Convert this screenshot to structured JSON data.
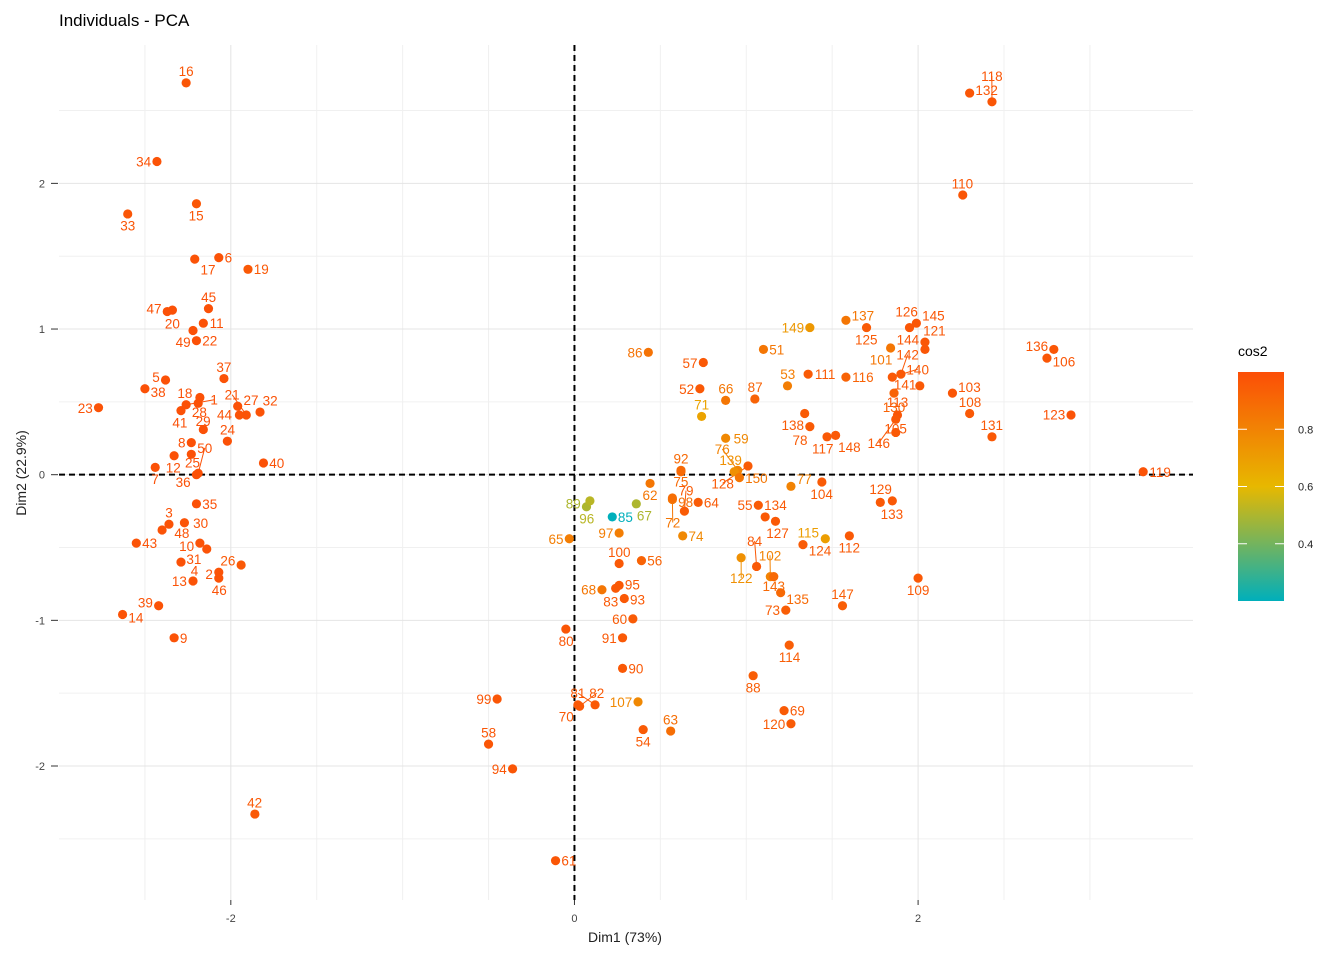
{
  "chart_data": {
    "type": "scatter",
    "title": "Individuals - PCA",
    "xlabel": "Dim1 (73%)",
    "ylabel": "Dim2 (22.9%)",
    "xlim": [
      -3.0,
      3.6
    ],
    "ylim": [
      -2.92,
      2.95
    ],
    "x_ticks": [
      -2,
      0,
      2
    ],
    "y_ticks": [
      -2,
      -1,
      0,
      1,
      2
    ],
    "x_tick_labels": [
      "-2",
      "0",
      "2"
    ],
    "y_tick_labels": [
      "-2",
      "-1",
      "0",
      "1",
      "2"
    ],
    "grid": true,
    "reference_lines": "dashed at x=0 and y=0",
    "color_variable": "cos2",
    "legend": {
      "title": "cos2",
      "position": "right",
      "ticks": [
        0.4,
        0.6,
        0.8
      ],
      "tick_labels": [
        "0.4",
        "0.6",
        "0.8"
      ],
      "range": [
        0.2,
        1.0
      ],
      "colors": [
        "#00AFBB",
        "#E7B800",
        "#FC4E07"
      ]
    },
    "points": [
      {
        "label": "1",
        "x": -2.26,
        "y": 0.48,
        "cos2": 0.99
      },
      {
        "label": "2",
        "x": -2.07,
        "y": -0.67,
        "cos2": 0.98
      },
      {
        "label": "3",
        "x": -2.36,
        "y": -0.34,
        "cos2": 0.98
      },
      {
        "label": "4",
        "x": -2.29,
        "y": -0.6,
        "cos2": 0.99
      },
      {
        "label": "5",
        "x": -2.38,
        "y": 0.65,
        "cos2": 0.99
      },
      {
        "label": "6",
        "x": -2.07,
        "y": 1.49,
        "cos2": 0.98
      },
      {
        "label": "7",
        "x": -2.44,
        "y": 0.05,
        "cos2": 0.99
      },
      {
        "label": "8",
        "x": -2.23,
        "y": 0.22,
        "cos2": 0.99
      },
      {
        "label": "9",
        "x": -2.33,
        "y": -1.12,
        "cos2": 0.98
      },
      {
        "label": "10",
        "x": -2.18,
        "y": -0.47,
        "cos2": 0.98
      },
      {
        "label": "11",
        "x": -2.16,
        "y": 1.04,
        "cos2": 0.99
      },
      {
        "label": "12",
        "x": -2.33,
        "y": 0.13,
        "cos2": 0.99
      },
      {
        "label": "13",
        "x": -2.22,
        "y": -0.73,
        "cos2": 0.98
      },
      {
        "label": "14",
        "x": -2.63,
        "y": -0.96,
        "cos2": 0.98
      },
      {
        "label": "15",
        "x": -2.2,
        "y": 1.86,
        "cos2": 0.97
      },
      {
        "label": "16",
        "x": -2.26,
        "y": 2.69,
        "cos2": 0.97
      },
      {
        "label": "17",
        "x": -2.21,
        "y": 1.48,
        "cos2": 0.98
      },
      {
        "label": "18",
        "x": -2.19,
        "y": 0.49,
        "cos2": 0.99
      },
      {
        "label": "19",
        "x": -1.9,
        "y": 1.41,
        "cos2": 0.96
      },
      {
        "label": "20",
        "x": -2.34,
        "y": 1.13,
        "cos2": 0.99
      },
      {
        "label": "21",
        "x": -1.91,
        "y": 0.41,
        "cos2": 0.98
      },
      {
        "label": "22",
        "x": -2.2,
        "y": 0.92,
        "cos2": 0.99
      },
      {
        "label": "23",
        "x": -2.77,
        "y": 0.46,
        "cos2": 0.98
      },
      {
        "label": "24",
        "x": -2.02,
        "y": 0.23,
        "cos2": 0.99
      },
      {
        "label": "25",
        "x": -2.23,
        "y": 0.14,
        "cos2": 0.99
      },
      {
        "label": "26",
        "x": -1.94,
        "y": -0.62,
        "cos2": 0.96
      },
      {
        "label": "27",
        "x": -1.96,
        "y": 0.47,
        "cos2": 0.99
      },
      {
        "label": "28",
        "x": -2.18,
        "y": 0.53,
        "cos2": 0.99
      },
      {
        "label": "29",
        "x": -2.16,
        "y": 0.31,
        "cos2": 0.99
      },
      {
        "label": "30",
        "x": -2.27,
        "y": -0.33,
        "cos2": 0.98
      },
      {
        "label": "31",
        "x": -2.14,
        "y": -0.51,
        "cos2": 0.98
      },
      {
        "label": "32",
        "x": -1.83,
        "y": 0.43,
        "cos2": 0.98
      },
      {
        "label": "33",
        "x": -2.6,
        "y": 1.79,
        "cos2": 0.97
      },
      {
        "label": "34",
        "x": -2.43,
        "y": 2.15,
        "cos2": 0.98
      },
      {
        "label": "35",
        "x": -2.2,
        "y": -0.2,
        "cos2": 0.99
      },
      {
        "label": "36",
        "x": -2.2,
        "y": 0.0,
        "cos2": 0.99
      },
      {
        "label": "37",
        "x": -2.04,
        "y": 0.66,
        "cos2": 0.98
      },
      {
        "label": "38",
        "x": -2.5,
        "y": 0.59,
        "cos2": 0.99
      },
      {
        "label": "39",
        "x": -2.42,
        "y": -0.9,
        "cos2": 0.98
      },
      {
        "label": "40",
        "x": -1.81,
        "y": 0.08,
        "cos2": 0.99
      },
      {
        "label": "41",
        "x": -2.29,
        "y": 0.44,
        "cos2": 0.99
      },
      {
        "label": "42",
        "x": -1.86,
        "y": -2.33,
        "cos2": 0.96
      },
      {
        "label": "43",
        "x": -2.55,
        "y": -0.47,
        "cos2": 0.98
      },
      {
        "label": "44",
        "x": -1.95,
        "y": 0.41,
        "cos2": 0.98
      },
      {
        "label": "45",
        "x": -2.13,
        "y": 1.14,
        "cos2": 0.99
      },
      {
        "label": "46",
        "x": -2.07,
        "y": -0.71,
        "cos2": 0.98
      },
      {
        "label": "47",
        "x": -2.37,
        "y": 1.12,
        "cos2": 0.99
      },
      {
        "label": "48",
        "x": -2.4,
        "y": -0.38,
        "cos2": 0.98
      },
      {
        "label": "49",
        "x": -2.22,
        "y": 0.99,
        "cos2": 0.99
      },
      {
        "label": "50",
        "x": -2.19,
        "y": 0.01,
        "cos2": 0.99
      },
      {
        "label": "51",
        "x": 1.1,
        "y": 0.86,
        "cos2": 0.85
      },
      {
        "label": "52",
        "x": 0.73,
        "y": 0.59,
        "cos2": 0.96
      },
      {
        "label": "53",
        "x": 1.24,
        "y": 0.61,
        "cos2": 0.82
      },
      {
        "label": "54",
        "x": 0.4,
        "y": -1.75,
        "cos2": 0.95
      },
      {
        "label": "55",
        "x": 1.07,
        "y": -0.21,
        "cos2": 0.95
      },
      {
        "label": "56",
        "x": 0.39,
        "y": -0.59,
        "cos2": 0.92
      },
      {
        "label": "57",
        "x": 0.75,
        "y": 0.77,
        "cos2": 0.96
      },
      {
        "label": "58",
        "x": -0.5,
        "y": -1.85,
        "cos2": 0.97
      },
      {
        "label": "59",
        "x": 0.88,
        "y": 0.25,
        "cos2": 0.78
      },
      {
        "label": "60",
        "x": 0.34,
        "y": -0.99,
        "cos2": 0.95
      },
      {
        "label": "61",
        "x": -0.11,
        "y": -2.65,
        "cos2": 0.97
      },
      {
        "label": "62",
        "x": 0.44,
        "y": -0.06,
        "cos2": 0.85
      },
      {
        "label": "63",
        "x": 0.56,
        "y": -1.76,
        "cos2": 0.88
      },
      {
        "label": "64",
        "x": 0.72,
        "y": -0.19,
        "cos2": 0.95
      },
      {
        "label": "65",
        "x": -0.03,
        "y": -0.44,
        "cos2": 0.82
      },
      {
        "label": "66",
        "x": 0.88,
        "y": 0.51,
        "cos2": 0.85
      },
      {
        "label": "67",
        "x": 0.36,
        "y": -0.2,
        "cos2": 0.5
      },
      {
        "label": "68",
        "x": 0.16,
        "y": -0.79,
        "cos2": 0.85
      },
      {
        "label": "69",
        "x": 1.22,
        "y": -1.62,
        "cos2": 0.95
      },
      {
        "label": "70",
        "x": 0.02,
        "y": -1.58,
        "cos2": 0.96
      },
      {
        "label": "71",
        "x": 0.74,
        "y": 0.4,
        "cos2": 0.68
      },
      {
        "label": "72",
        "x": 0.57,
        "y": -0.17,
        "cos2": 0.85
      },
      {
        "label": "73",
        "x": 1.23,
        "y": -0.93,
        "cos2": 0.94
      },
      {
        "label": "74",
        "x": 0.63,
        "y": -0.42,
        "cos2": 0.78
      },
      {
        "label": "75",
        "x": 0.62,
        "y": 0.02,
        "cos2": 0.9
      },
      {
        "label": "76",
        "x": 0.95,
        "y": 0.03,
        "cos2": 0.8
      },
      {
        "label": "77",
        "x": 1.26,
        "y": -0.08,
        "cos2": 0.8
      },
      {
        "label": "78",
        "x": 1.37,
        "y": 0.33,
        "cos2": 0.95
      },
      {
        "label": "79",
        "x": 0.64,
        "y": -0.25,
        "cos2": 0.95
      },
      {
        "label": "80",
        "x": -0.05,
        "y": -1.06,
        "cos2": 0.97
      },
      {
        "label": "81",
        "x": 0.12,
        "y": -1.58,
        "cos2": 0.96
      },
      {
        "label": "82",
        "x": 0.03,
        "y": -1.59,
        "cos2": 0.96
      },
      {
        "label": "83",
        "x": 0.24,
        "y": -0.78,
        "cos2": 0.96
      },
      {
        "label": "84",
        "x": 1.06,
        "y": -0.63,
        "cos2": 0.96
      },
      {
        "label": "85",
        "x": 0.22,
        "y": -0.29,
        "cos2": 0.2
      },
      {
        "label": "86",
        "x": 0.43,
        "y": 0.84,
        "cos2": 0.86
      },
      {
        "label": "87",
        "x": 1.05,
        "y": 0.52,
        "cos2": 0.92
      },
      {
        "label": "88",
        "x": 1.04,
        "y": -1.38,
        "cos2": 0.94
      },
      {
        "label": "89",
        "x": 0.07,
        "y": -0.22,
        "cos2": 0.5
      },
      {
        "label": "90",
        "x": 0.28,
        "y": -1.33,
        "cos2": 0.96
      },
      {
        "label": "91",
        "x": 0.28,
        "y": -1.12,
        "cos2": 0.96
      },
      {
        "label": "92",
        "x": 0.62,
        "y": 0.03,
        "cos2": 0.9
      },
      {
        "label": "93",
        "x": 0.29,
        "y": -0.85,
        "cos2": 0.96
      },
      {
        "label": "94",
        "x": -0.36,
        "y": -2.02,
        "cos2": 0.97
      },
      {
        "label": "95",
        "x": 0.26,
        "y": -0.76,
        "cos2": 0.96
      },
      {
        "label": "96",
        "x": 0.09,
        "y": -0.18,
        "cos2": 0.52
      },
      {
        "label": "97",
        "x": 0.26,
        "y": -0.4,
        "cos2": 0.82
      },
      {
        "label": "98",
        "x": 0.57,
        "y": -0.16,
        "cos2": 0.88
      },
      {
        "label": "99",
        "x": -0.45,
        "y": -1.54,
        "cos2": 0.97
      },
      {
        "label": "100",
        "x": 0.26,
        "y": -0.61,
        "cos2": 0.96
      },
      {
        "label": "101",
        "x": 1.84,
        "y": 0.87,
        "cos2": 0.85
      },
      {
        "label": "102",
        "x": 1.14,
        "y": -0.7,
        "cos2": 0.8
      },
      {
        "label": "103",
        "x": 2.2,
        "y": 0.56,
        "cos2": 0.97
      },
      {
        "label": "104",
        "x": 1.44,
        "y": -0.05,
        "cos2": 0.95
      },
      {
        "label": "105",
        "x": 1.87,
        "y": 0.29,
        "cos2": 0.96
      },
      {
        "label": "106",
        "x": 2.75,
        "y": 0.8,
        "cos2": 0.97
      },
      {
        "label": "107",
        "x": 0.37,
        "y": -1.56,
        "cos2": 0.78
      },
      {
        "label": "108",
        "x": 2.3,
        "y": 0.42,
        "cos2": 0.96
      },
      {
        "label": "109",
        "x": 2.0,
        "y": -0.71,
        "cos2": 0.96
      },
      {
        "label": "110",
        "x": 2.26,
        "y": 1.92,
        "cos2": 0.97
      },
      {
        "label": "111",
        "x": 1.36,
        "y": 0.69,
        "cos2": 0.95
      },
      {
        "label": "112",
        "x": 1.6,
        "y": -0.42,
        "cos2": 0.96
      },
      {
        "label": "113",
        "x": 1.88,
        "y": 0.41,
        "cos2": 0.97
      },
      {
        "label": "114",
        "x": 1.25,
        "y": -1.17,
        "cos2": 0.94
      },
      {
        "label": "115",
        "x": 1.46,
        "y": -0.44,
        "cos2": 0.7
      },
      {
        "label": "116",
        "x": 1.58,
        "y": 0.67,
        "cos2": 0.92
      },
      {
        "label": "117",
        "x": 1.47,
        "y": 0.26,
        "cos2": 0.96
      },
      {
        "label": "118",
        "x": 2.43,
        "y": 2.56,
        "cos2": 0.97
      },
      {
        "label": "119",
        "x": 3.31,
        "y": 0.02,
        "cos2": 0.98
      },
      {
        "label": "120",
        "x": 1.26,
        "y": -1.71,
        "cos2": 0.95
      },
      {
        "label": "121",
        "x": 2.04,
        "y": 0.91,
        "cos2": 0.97
      },
      {
        "label": "122",
        "x": 0.97,
        "y": -0.57,
        "cos2": 0.75
      },
      {
        "label": "123",
        "x": 2.89,
        "y": 0.41,
        "cos2": 0.98
      },
      {
        "label": "124",
        "x": 1.33,
        "y": -0.48,
        "cos2": 0.95
      },
      {
        "label": "125",
        "x": 1.7,
        "y": 1.01,
        "cos2": 0.95
      },
      {
        "label": "126",
        "x": 1.95,
        "y": 1.01,
        "cos2": 0.97
      },
      {
        "label": "127",
        "x": 1.17,
        "y": -0.32,
        "cos2": 0.96
      },
      {
        "label": "128",
        "x": 1.01,
        "y": 0.06,
        "cos2": 0.95
      },
      {
        "label": "129",
        "x": 1.78,
        "y": -0.19,
        "cos2": 0.96
      },
      {
        "label": "130",
        "x": 1.86,
        "y": 0.56,
        "cos2": 0.92
      },
      {
        "label": "131",
        "x": 2.43,
        "y": 0.26,
        "cos2": 0.96
      },
      {
        "label": "132",
        "x": 2.3,
        "y": 2.62,
        "cos2": 0.97
      },
      {
        "label": "133",
        "x": 1.85,
        "y": -0.18,
        "cos2": 0.96
      },
      {
        "label": "134",
        "x": 1.11,
        "y": -0.29,
        "cos2": 0.96
      },
      {
        "label": "135",
        "x": 1.2,
        "y": -0.81,
        "cos2": 0.9
      },
      {
        "label": "136",
        "x": 2.79,
        "y": 0.86,
        "cos2": 0.97
      },
      {
        "label": "137",
        "x": 1.58,
        "y": 1.06,
        "cos2": 0.85
      },
      {
        "label": "138",
        "x": 1.34,
        "y": 0.42,
        "cos2": 0.95
      },
      {
        "label": "139",
        "x": 0.93,
        "y": 0.02,
        "cos2": 0.75
      },
      {
        "label": "140",
        "x": 1.85,
        "y": 0.67,
        "cos2": 0.96
      },
      {
        "label": "141",
        "x": 2.01,
        "y": 0.61,
        "cos2": 0.96
      },
      {
        "label": "142",
        "x": 1.9,
        "y": 0.69,
        "cos2": 0.96
      },
      {
        "label": "143",
        "x": 1.16,
        "y": -0.7,
        "cos2": 0.9
      },
      {
        "label": "144",
        "x": 2.04,
        "y": 0.86,
        "cos2": 0.97
      },
      {
        "label": "145",
        "x": 1.99,
        "y": 1.04,
        "cos2": 0.97
      },
      {
        "label": "146",
        "x": 1.87,
        "y": 0.38,
        "cos2": 0.96
      },
      {
        "label": "147",
        "x": 1.56,
        "y": -0.9,
        "cos2": 0.94
      },
      {
        "label": "148",
        "x": 1.52,
        "y": 0.27,
        "cos2": 0.96
      },
      {
        "label": "149",
        "x": 1.37,
        "y": 1.01,
        "cos2": 0.72
      },
      {
        "label": "150",
        "x": 0.96,
        "y": -0.02,
        "cos2": 0.85
      }
    ]
  }
}
